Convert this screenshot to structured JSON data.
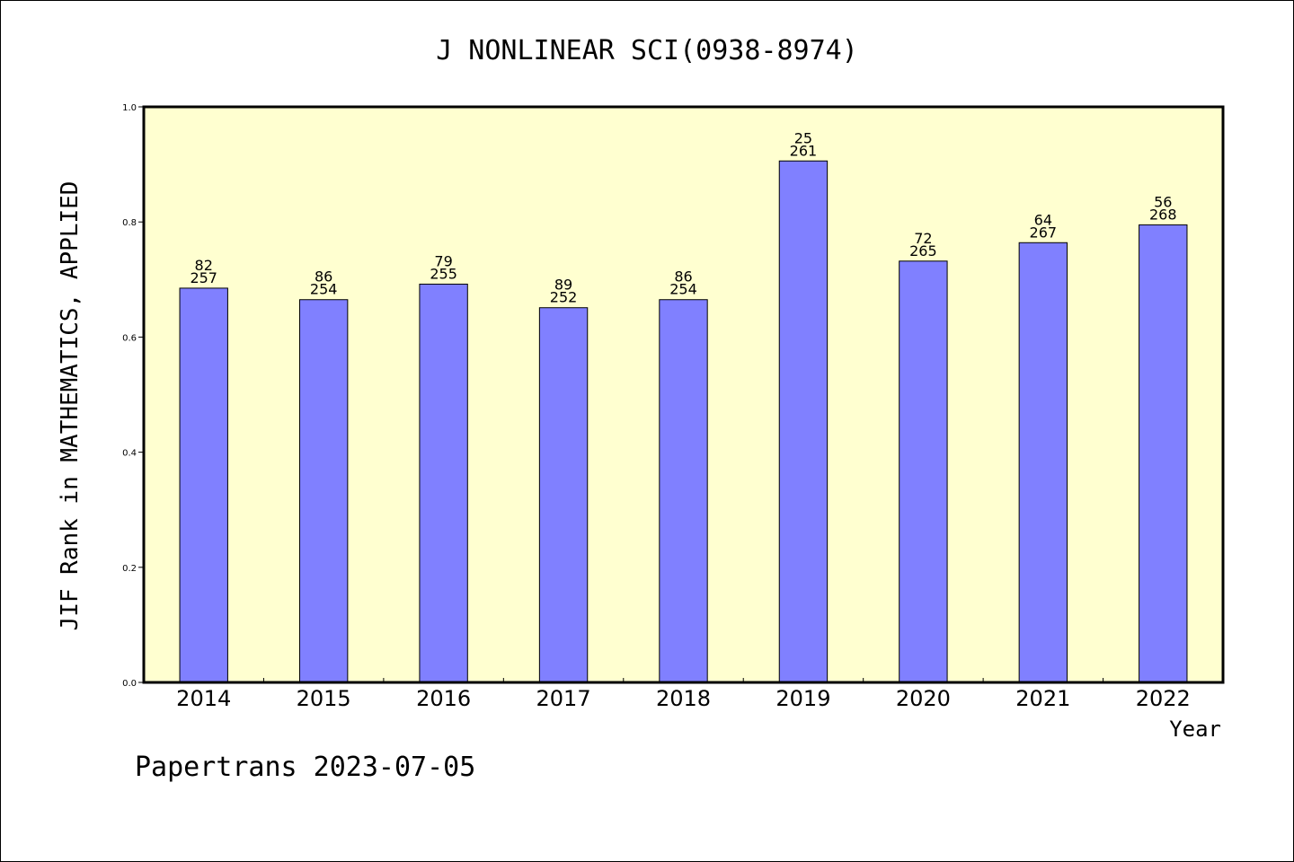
{
  "chart_data": {
    "type": "bar",
    "title": "J NONLINEAR SCI(0938-8974)",
    "xlabel": "Year",
    "ylabel": "JIF Rank in MATHEMATICS, APPLIED",
    "ylim": [
      0,
      1.0
    ],
    "yticks": [
      "0.0",
      "0.2",
      "0.4",
      "0.6",
      "0.8",
      "1.0"
    ],
    "categories": [
      "2014",
      "2015",
      "2016",
      "2017",
      "2018",
      "2019",
      "2020",
      "2021",
      "2022"
    ],
    "values": [
      0.685,
      0.665,
      0.692,
      0.651,
      0.665,
      0.906,
      0.732,
      0.764,
      0.795
    ],
    "rank_labels": [
      "82",
      "86",
      "79",
      "89",
      "86",
      "25",
      "72",
      "64",
      "56"
    ],
    "total_labels": [
      "257",
      "254",
      "255",
      "252",
      "254",
      "261",
      "265",
      "267",
      "268"
    ],
    "grid": false,
    "colors": {
      "plot_background": "#ffffd0",
      "bar_fill": "#8080ff",
      "bar_stroke": "#000000"
    }
  },
  "footer": "Papertrans 2023-07-05"
}
